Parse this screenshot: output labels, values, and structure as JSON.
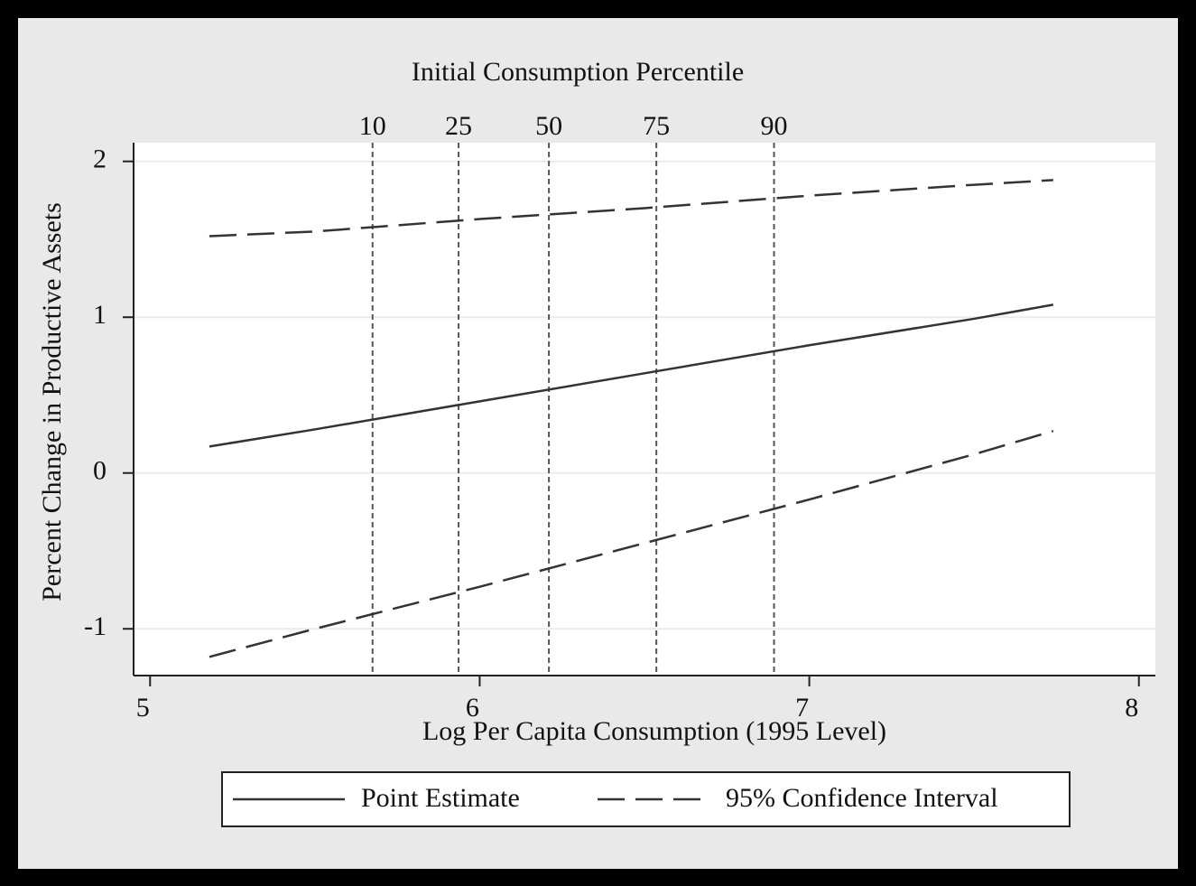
{
  "chart_data": {
    "type": "line",
    "xlabel": "Log Per Capita Consumption (1995 Level)",
    "ylabel": "Percent Change in Productive Assets",
    "top_axis_title": "Initial Consumption Percentile",
    "x": [
      5.18,
      5.5,
      6,
      6.5,
      7,
      7.5,
      7.74
    ],
    "series": [
      {
        "name": "Point Estimate",
        "color": "#333333",
        "dash": false,
        "values": [
          0.17,
          0.28,
          0.46,
          0.64,
          0.82,
          0.99,
          1.08
        ]
      },
      {
        "name": "95% Confidence Interval",
        "color": "#333333",
        "dash": true,
        "values": [
          1.52,
          1.55,
          1.63,
          1.7,
          1.78,
          1.85,
          1.88
        ]
      },
      {
        "color": "#333333",
        "dash": true,
        "values": [
          -1.18,
          -1.0,
          -0.73,
          -0.45,
          -0.17,
          0.12,
          0.27
        ]
      }
    ],
    "percentile_lines": [
      {
        "value": 5.675,
        "label": "10"
      },
      {
        "value": 5.936,
        "label": "25"
      },
      {
        "value": 6.21,
        "label": "50"
      },
      {
        "value": 6.536,
        "label": "75"
      },
      {
        "value": 6.893,
        "label": "90"
      }
    ],
    "xlim": [
      4.95,
      8.05
    ],
    "ylim": [
      -1.3,
      2.12
    ],
    "xticks": [
      5,
      6,
      7,
      8
    ],
    "yticks": [
      -1,
      0,
      1,
      2
    ],
    "grid": true,
    "legend": "bottom"
  }
}
